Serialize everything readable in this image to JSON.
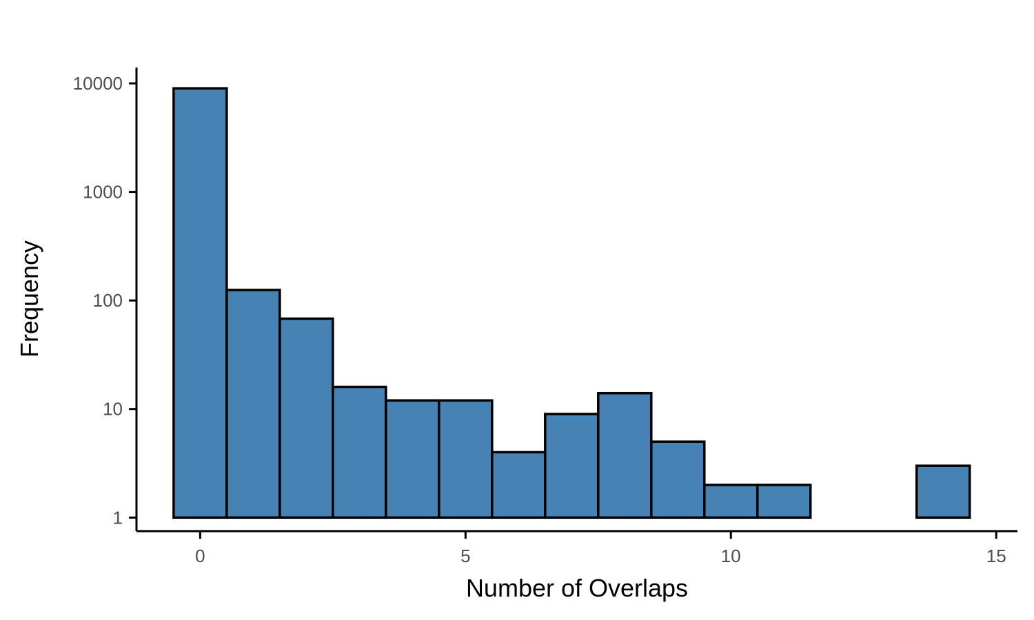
{
  "chart_data": {
    "type": "bar",
    "subtype": "histogram",
    "xlabel": "Number of Overlaps",
    "ylabel": "Frequency",
    "y_scale": "log10",
    "xlim": [
      -1.2,
      15.4
    ],
    "ylim": [
      0.75,
      14000
    ],
    "x_ticks": [
      0,
      5,
      10,
      15
    ],
    "y_ticks": [
      1,
      10,
      100,
      1000,
      10000
    ],
    "y_tick_labels": [
      "1",
      "10",
      "100",
      "1000",
      "10000"
    ],
    "bin_width": 1,
    "bins": [
      {
        "x": 0,
        "count": 9000
      },
      {
        "x": 1,
        "count": 125
      },
      {
        "x": 2,
        "count": 68
      },
      {
        "x": 3,
        "count": 16
      },
      {
        "x": 4,
        "count": 12
      },
      {
        "x": 5,
        "count": 12
      },
      {
        "x": 6,
        "count": 4
      },
      {
        "x": 7,
        "count": 9
      },
      {
        "x": 8,
        "count": 14
      },
      {
        "x": 9,
        "count": 5
      },
      {
        "x": 10,
        "count": 2
      },
      {
        "x": 11,
        "count": 2
      },
      {
        "x": 14,
        "count": 3
      }
    ],
    "bar_fill": "#4682B4",
    "bar_stroke": "#000000",
    "grid": false,
    "legend": "none"
  }
}
